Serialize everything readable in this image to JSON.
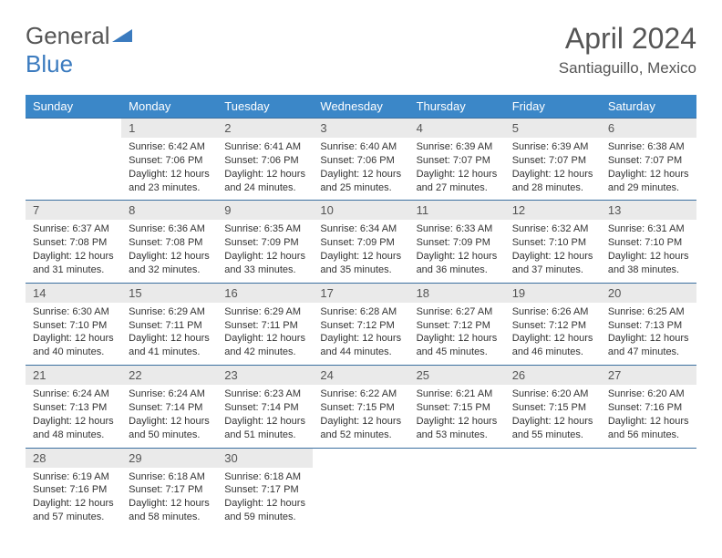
{
  "logo": {
    "text1": "General",
    "text2": "Blue"
  },
  "title": "April 2024",
  "location": "Santiaguillo, Mexico",
  "day_headers": [
    "Sunday",
    "Monday",
    "Tuesday",
    "Wednesday",
    "Thursday",
    "Friday",
    "Saturday"
  ],
  "colors": {
    "header_bg": "#3b87c8",
    "header_text": "#ffffff",
    "daynum_bg": "#eaeaea",
    "rule": "#3b6fa0",
    "body_text": "#333333",
    "title_text": "#555555"
  },
  "weeks": [
    [
      {
        "n": "",
        "lines": []
      },
      {
        "n": "1",
        "lines": [
          "Sunrise: 6:42 AM",
          "Sunset: 7:06 PM",
          "Daylight: 12 hours and 23 minutes."
        ]
      },
      {
        "n": "2",
        "lines": [
          "Sunrise: 6:41 AM",
          "Sunset: 7:06 PM",
          "Daylight: 12 hours and 24 minutes."
        ]
      },
      {
        "n": "3",
        "lines": [
          "Sunrise: 6:40 AM",
          "Sunset: 7:06 PM",
          "Daylight: 12 hours and 25 minutes."
        ]
      },
      {
        "n": "4",
        "lines": [
          "Sunrise: 6:39 AM",
          "Sunset: 7:07 PM",
          "Daylight: 12 hours and 27 minutes."
        ]
      },
      {
        "n": "5",
        "lines": [
          "Sunrise: 6:39 AM",
          "Sunset: 7:07 PM",
          "Daylight: 12 hours and 28 minutes."
        ]
      },
      {
        "n": "6",
        "lines": [
          "Sunrise: 6:38 AM",
          "Sunset: 7:07 PM",
          "Daylight: 12 hours and 29 minutes."
        ]
      }
    ],
    [
      {
        "n": "7",
        "lines": [
          "Sunrise: 6:37 AM",
          "Sunset: 7:08 PM",
          "Daylight: 12 hours and 31 minutes."
        ]
      },
      {
        "n": "8",
        "lines": [
          "Sunrise: 6:36 AM",
          "Sunset: 7:08 PM",
          "Daylight: 12 hours and 32 minutes."
        ]
      },
      {
        "n": "9",
        "lines": [
          "Sunrise: 6:35 AM",
          "Sunset: 7:09 PM",
          "Daylight: 12 hours and 33 minutes."
        ]
      },
      {
        "n": "10",
        "lines": [
          "Sunrise: 6:34 AM",
          "Sunset: 7:09 PM",
          "Daylight: 12 hours and 35 minutes."
        ]
      },
      {
        "n": "11",
        "lines": [
          "Sunrise: 6:33 AM",
          "Sunset: 7:09 PM",
          "Daylight: 12 hours and 36 minutes."
        ]
      },
      {
        "n": "12",
        "lines": [
          "Sunrise: 6:32 AM",
          "Sunset: 7:10 PM",
          "Daylight: 12 hours and 37 minutes."
        ]
      },
      {
        "n": "13",
        "lines": [
          "Sunrise: 6:31 AM",
          "Sunset: 7:10 PM",
          "Daylight: 12 hours and 38 minutes."
        ]
      }
    ],
    [
      {
        "n": "14",
        "lines": [
          "Sunrise: 6:30 AM",
          "Sunset: 7:10 PM",
          "Daylight: 12 hours and 40 minutes."
        ]
      },
      {
        "n": "15",
        "lines": [
          "Sunrise: 6:29 AM",
          "Sunset: 7:11 PM",
          "Daylight: 12 hours and 41 minutes."
        ]
      },
      {
        "n": "16",
        "lines": [
          "Sunrise: 6:29 AM",
          "Sunset: 7:11 PM",
          "Daylight: 12 hours and 42 minutes."
        ]
      },
      {
        "n": "17",
        "lines": [
          "Sunrise: 6:28 AM",
          "Sunset: 7:12 PM",
          "Daylight: 12 hours and 44 minutes."
        ]
      },
      {
        "n": "18",
        "lines": [
          "Sunrise: 6:27 AM",
          "Sunset: 7:12 PM",
          "Daylight: 12 hours and 45 minutes."
        ]
      },
      {
        "n": "19",
        "lines": [
          "Sunrise: 6:26 AM",
          "Sunset: 7:12 PM",
          "Daylight: 12 hours and 46 minutes."
        ]
      },
      {
        "n": "20",
        "lines": [
          "Sunrise: 6:25 AM",
          "Sunset: 7:13 PM",
          "Daylight: 12 hours and 47 minutes."
        ]
      }
    ],
    [
      {
        "n": "21",
        "lines": [
          "Sunrise: 6:24 AM",
          "Sunset: 7:13 PM",
          "Daylight: 12 hours and 48 minutes."
        ]
      },
      {
        "n": "22",
        "lines": [
          "Sunrise: 6:24 AM",
          "Sunset: 7:14 PM",
          "Daylight: 12 hours and 50 minutes."
        ]
      },
      {
        "n": "23",
        "lines": [
          "Sunrise: 6:23 AM",
          "Sunset: 7:14 PM",
          "Daylight: 12 hours and 51 minutes."
        ]
      },
      {
        "n": "24",
        "lines": [
          "Sunrise: 6:22 AM",
          "Sunset: 7:15 PM",
          "Daylight: 12 hours and 52 minutes."
        ]
      },
      {
        "n": "25",
        "lines": [
          "Sunrise: 6:21 AM",
          "Sunset: 7:15 PM",
          "Daylight: 12 hours and 53 minutes."
        ]
      },
      {
        "n": "26",
        "lines": [
          "Sunrise: 6:20 AM",
          "Sunset: 7:15 PM",
          "Daylight: 12 hours and 55 minutes."
        ]
      },
      {
        "n": "27",
        "lines": [
          "Sunrise: 6:20 AM",
          "Sunset: 7:16 PM",
          "Daylight: 12 hours and 56 minutes."
        ]
      }
    ],
    [
      {
        "n": "28",
        "lines": [
          "Sunrise: 6:19 AM",
          "Sunset: 7:16 PM",
          "Daylight: 12 hours and 57 minutes."
        ]
      },
      {
        "n": "29",
        "lines": [
          "Sunrise: 6:18 AM",
          "Sunset: 7:17 PM",
          "Daylight: 12 hours and 58 minutes."
        ]
      },
      {
        "n": "30",
        "lines": [
          "Sunrise: 6:18 AM",
          "Sunset: 7:17 PM",
          "Daylight: 12 hours and 59 minutes."
        ]
      },
      {
        "n": "",
        "lines": []
      },
      {
        "n": "",
        "lines": []
      },
      {
        "n": "",
        "lines": []
      },
      {
        "n": "",
        "lines": []
      }
    ]
  ]
}
